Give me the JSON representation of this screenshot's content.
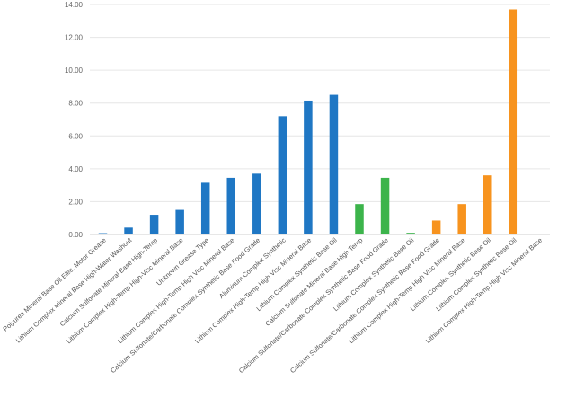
{
  "chart_data": {
    "type": "bar",
    "title": "",
    "xlabel": "",
    "ylabel": "",
    "ylim": [
      0,
      14
    ],
    "yticks": [
      "0.00",
      "2.00",
      "4.00",
      "6.00",
      "8.00",
      "10.00",
      "12.00",
      "14.00"
    ],
    "grid": true,
    "categories": [
      "Polyurea Mineral Base Oil Elec. Motor Grease",
      "Lithium Complex Mineral Base High-Water Washout",
      "Calcium Sulfonate Mineral Base High-Temp",
      "Lithium Complex High-Temp High-Visc Mineral Base",
      "Unknown Grease Type",
      "Lithium Complex High-Temp High Visc Mineral Base",
      "Calcium Sulfonate/Carbonate Complex Synthetic Base Food Grade",
      "Aluminum Complex Synthetic",
      "Lithium Complex High-Temp High Visc Mineral Base",
      "Lithium Complex Synthetic Base Oil",
      "Calcium Sulfonate Mineral Base High Temp",
      "Calcium Sulfonate/Carbonate Complex Synthetic Base Food Grade",
      "Lithium Complex Synthetic Base Oil",
      "Calcium Sulfonate/Carbonate Complex Synthetic Base Food Grade",
      "Lithium Complex High-Temp High Visc Mineral Base",
      "Lithium Complex Synthetic Base Oil",
      "Lithium Complex Synthetic Base Oil",
      "Lithium Complex High-Temp High Visc Mineral Base"
    ],
    "values": [
      0.08,
      0.42,
      1.2,
      1.5,
      3.15,
      3.45,
      3.7,
      7.2,
      8.15,
      8.5,
      1.85,
      3.45,
      0.1,
      0.85,
      1.85,
      3.6,
      13.7,
      0
    ],
    "colors": [
      "#1f77c4",
      "#1f77c4",
      "#1f77c4",
      "#1f77c4",
      "#1f77c4",
      "#1f77c4",
      "#1f77c4",
      "#1f77c4",
      "#1f77c4",
      "#1f77c4",
      "#3cb44b",
      "#3cb44b",
      "#3cb44b",
      "#f7931e",
      "#f7931e",
      "#f7931e",
      "#f7931e",
      "#f7931e"
    ]
  }
}
